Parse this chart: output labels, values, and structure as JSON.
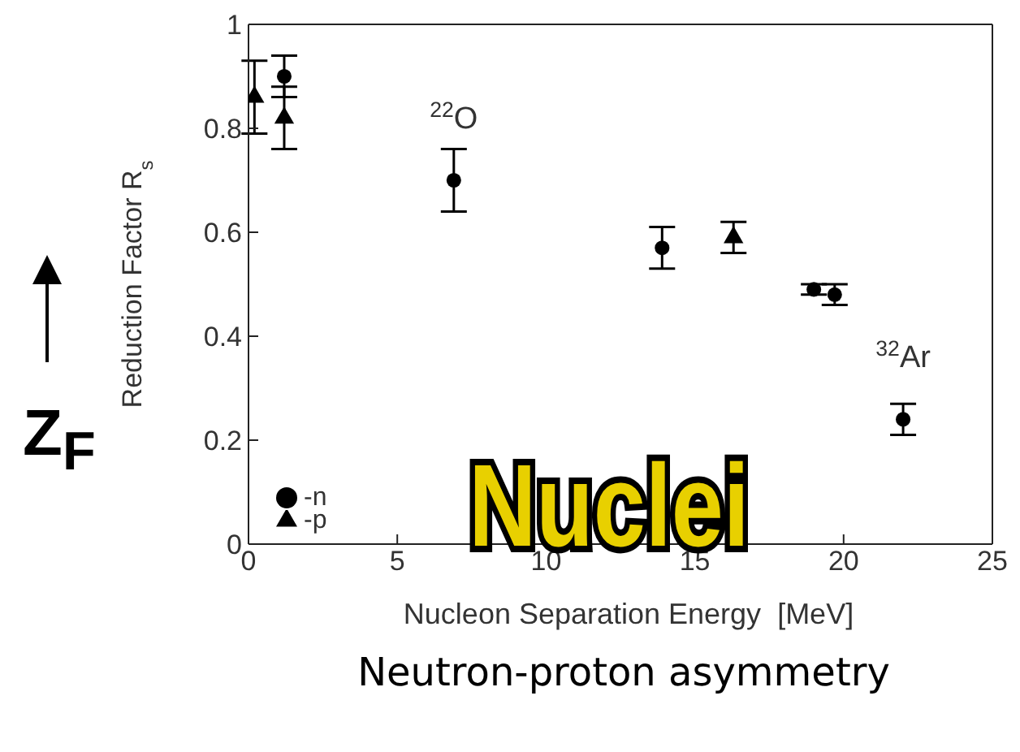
{
  "chart_data": {
    "type": "scatter",
    "xlabel": "Nucleon Separation Energy  [MeV]",
    "ylabel": "Reduction Factor R$_{s}$",
    "xlim": [
      0,
      25
    ],
    "xticks": [
      0,
      5,
      10,
      15,
      20,
      25
    ],
    "ylim": [
      0,
      1
    ],
    "yticks": [
      0,
      0.2,
      0.4,
      0.6,
      0.8,
      1
    ],
    "grid": false,
    "legend": "bottom left",
    "series": [
      {
        "name": "-n",
        "color": "#000000",
        "marker": "circle",
        "x": [
          1.2,
          6.9,
          13.9,
          19.0,
          19.7,
          22.0
        ],
        "values": [
          0.9,
          0.7,
          0.57,
          0.49,
          0.48,
          0.24
        ],
        "errors": [
          0.04,
          0.06,
          0.04,
          0.01,
          0.02,
          0.03
        ]
      },
      {
        "name": "-p",
        "color": "#000000",
        "marker": "triangle",
        "x": [
          0.2,
          1.2,
          16.3
        ],
        "values": [
          0.86,
          0.82,
          0.59
        ],
        "errors": [
          0.07,
          0.06,
          0.03
        ]
      }
    ],
    "annotations": [
      "Z$_{F}$",
      "Nuclei",
      "Neutron-proton asymmetry",
      {
        "text": "$^{22}$O",
        "x": 6.9,
        "y": 0.7
      },
      {
        "text": "$^{32}$Ar",
        "x": 22.0,
        "y": 0.24
      }
    ]
  }
}
